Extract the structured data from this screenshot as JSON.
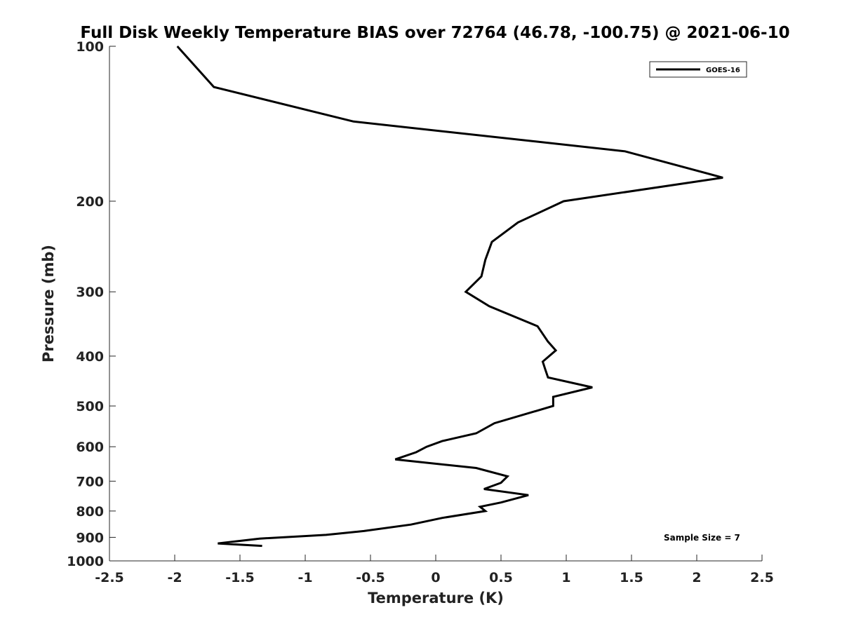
{
  "chart_data": {
    "type": "line",
    "title": "Full Disk Weekly Temperature BIAS over 72764 (46.78, -100.75) @ 2021-06-10",
    "xlabel": "Temperature (K)",
    "ylabel": "Pressure (mb)",
    "xlim": [
      -2.5,
      2.5
    ],
    "ylim": [
      100,
      1000
    ],
    "yscale": "log",
    "yreversed": true,
    "x_ticks": [
      -2.5,
      -2,
      -1.5,
      -1,
      -0.5,
      0,
      0.5,
      1,
      1.5,
      2,
      2.5
    ],
    "x_tick_labels": [
      "-2.5",
      "-2",
      "-1.5",
      "-1",
      "-0.5",
      "0",
      "0.5",
      "1",
      "1.5",
      "2",
      "2.5"
    ],
    "y_ticks": [
      100,
      200,
      300,
      400,
      500,
      600,
      700,
      800,
      900,
      1000
    ],
    "y_tick_labels": [
      "100",
      "200",
      "300",
      "400",
      "500",
      "600",
      "700",
      "800",
      "900",
      "1000"
    ],
    "grid": false,
    "legend_position": "top-right",
    "series": [
      {
        "name": "GOES-16",
        "color": "#000000",
        "points": [
          {
            "x": -1.98,
            "y": 100
          },
          {
            "x": -1.7,
            "y": 120
          },
          {
            "x": -0.63,
            "y": 140
          },
          {
            "x": 1.45,
            "y": 160
          },
          {
            "x": 2.2,
            "y": 180
          },
          {
            "x": 0.98,
            "y": 200
          },
          {
            "x": 0.63,
            "y": 220
          },
          {
            "x": 0.43,
            "y": 240
          },
          {
            "x": 0.38,
            "y": 260
          },
          {
            "x": 0.35,
            "y": 280
          },
          {
            "x": 0.23,
            "y": 300
          },
          {
            "x": 0.41,
            "y": 320
          },
          {
            "x": 0.78,
            "y": 350
          },
          {
            "x": 0.86,
            "y": 375
          },
          {
            "x": 0.92,
            "y": 390
          },
          {
            "x": 0.82,
            "y": 410
          },
          {
            "x": 0.84,
            "y": 425
          },
          {
            "x": 0.86,
            "y": 440
          },
          {
            "x": 1.2,
            "y": 460
          },
          {
            "x": 0.9,
            "y": 480
          },
          {
            "x": 0.9,
            "y": 500
          },
          {
            "x": 0.45,
            "y": 540
          },
          {
            "x": 0.31,
            "y": 565
          },
          {
            "x": 0.05,
            "y": 585
          },
          {
            "x": -0.07,
            "y": 600
          },
          {
            "x": -0.15,
            "y": 615
          },
          {
            "x": -0.31,
            "y": 635
          },
          {
            "x": 0.31,
            "y": 660
          },
          {
            "x": 0.55,
            "y": 685
          },
          {
            "x": 0.5,
            "y": 705
          },
          {
            "x": 0.37,
            "y": 725
          },
          {
            "x": 0.71,
            "y": 745
          },
          {
            "x": 0.5,
            "y": 770
          },
          {
            "x": 0.34,
            "y": 785
          },
          {
            "x": 0.38,
            "y": 800
          },
          {
            "x": 0.05,
            "y": 825
          },
          {
            "x": -0.19,
            "y": 850
          },
          {
            "x": -0.55,
            "y": 875
          },
          {
            "x": -0.84,
            "y": 890
          },
          {
            "x": -1.35,
            "y": 905
          },
          {
            "x": -1.67,
            "y": 925
          },
          {
            "x": -1.33,
            "y": 935
          }
        ]
      }
    ],
    "annotation": "Sample Size = 7"
  }
}
